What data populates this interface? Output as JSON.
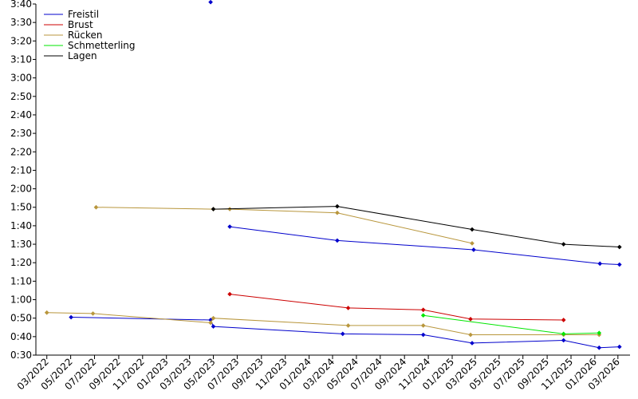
{
  "chart_data": {
    "type": "line",
    "title": "",
    "xlabel": "",
    "ylabel": "",
    "ylim": [
      "0:30",
      "3:40"
    ],
    "xlim": [
      "2022-02-01",
      "2026-04-01"
    ],
    "grid": false,
    "legend_position": "top-left",
    "y_ticks": [
      "0:30",
      "0:40",
      "0:50",
      "1:00",
      "1:10",
      "1:20",
      "1:30",
      "1:40",
      "1:50",
      "2:00",
      "2:10",
      "2:20",
      "2:30",
      "2:40",
      "2:50",
      "3:00",
      "3:10",
      "3:20",
      "3:30",
      "3:40"
    ],
    "x_ticks": [
      {
        "date": "2022-03-01",
        "label": "03/2022"
      },
      {
        "date": "2022-05-01",
        "label": "05/2022"
      },
      {
        "date": "2022-07-01",
        "label": "07/2022"
      },
      {
        "date": "2022-09-01",
        "label": "09/2022"
      },
      {
        "date": "2022-11-01",
        "label": "11/2022"
      },
      {
        "date": "2023-01-01",
        "label": "01/2023"
      },
      {
        "date": "2023-03-01",
        "label": "03/2023"
      },
      {
        "date": "2023-05-01",
        "label": "05/2023"
      },
      {
        "date": "2023-07-01",
        "label": "07/2023"
      },
      {
        "date": "2023-09-01",
        "label": "09/2023"
      },
      {
        "date": "2023-11-01",
        "label": "11/2023"
      },
      {
        "date": "2024-01-01",
        "label": "01/2024"
      },
      {
        "date": "2024-03-01",
        "label": "03/2024"
      },
      {
        "date": "2024-05-01",
        "label": "05/2024"
      },
      {
        "date": "2024-07-01",
        "label": "07/2024"
      },
      {
        "date": "2024-09-01",
        "label": "09/2024"
      },
      {
        "date": "2024-11-01",
        "label": "11/2024"
      },
      {
        "date": "2025-01-01",
        "label": "01/2025"
      },
      {
        "date": "2025-03-01",
        "label": "03/2025"
      },
      {
        "date": "2025-05-01",
        "label": "05/2025"
      },
      {
        "date": "2025-07-01",
        "label": "07/2025"
      },
      {
        "date": "2025-09-01",
        "label": "09/2025"
      },
      {
        "date": "2025-11-01",
        "label": "11/2025"
      },
      {
        "date": "2026-01-01",
        "label": "01/2026"
      },
      {
        "date": "2026-03-01",
        "label": "03/2026"
      }
    ],
    "series": [
      {
        "name": "Freistil",
        "color": "#0000cc",
        "points": [
          [
            "2022-05-02",
            "0:50.5"
          ],
          [
            "2023-04-24",
            "0:49"
          ],
          [
            "2023-05-01",
            "0:45.5"
          ],
          [
            "2024-03-27",
            "0:41.5"
          ],
          [
            "2024-10-19",
            "0:41"
          ],
          [
            "2025-02-21",
            "0:36.5"
          ],
          [
            "2025-10-13",
            "0:38"
          ],
          [
            "2026-01-12",
            "0:34"
          ],
          [
            "2026-03-05",
            "0:34.5"
          ]
        ],
        "unconnected_points": [
          [
            "2023-04-24",
            "3:41"
          ]
        ]
      },
      {
        "name": "Freistil",
        "color": "#0000cc",
        "points": [
          [
            "2023-06-12",
            "1:39.5"
          ],
          [
            "2024-03-13",
            "1:32"
          ],
          [
            "2025-02-25",
            "1:27"
          ],
          [
            "2026-01-14",
            "1:19.5"
          ],
          [
            "2026-03-05",
            "1:19"
          ]
        ]
      },
      {
        "name": "Brust",
        "color": "#cc0000",
        "points": [
          [
            "2023-06-12",
            "1:03"
          ],
          [
            "2024-04-10",
            "0:55.5"
          ],
          [
            "2024-10-19",
            "0:54.5"
          ],
          [
            "2025-02-17",
            "0:49.5"
          ],
          [
            "2025-10-13",
            "0:49"
          ]
        ]
      },
      {
        "name": "Rücken",
        "color": "#b8963c",
        "points": [
          [
            "2022-03-01",
            "0:53"
          ],
          [
            "2022-06-27",
            "0:52.5"
          ],
          [
            "2023-04-24",
            "0:47.5"
          ],
          [
            "2023-05-01",
            "0:50"
          ],
          [
            "2024-04-10",
            "0:46"
          ],
          [
            "2024-10-19",
            "0:46"
          ],
          [
            "2025-02-17",
            "0:41"
          ],
          [
            "2025-10-13",
            "0:41"
          ],
          [
            "2026-01-12",
            "0:41"
          ]
        ]
      },
      {
        "name": "Rücken",
        "color": "#b8963c",
        "points": [
          [
            "2022-07-05",
            "1:50"
          ],
          [
            "2023-05-01",
            "1:49"
          ],
          [
            "2023-06-12",
            "1:49"
          ],
          [
            "2024-03-13",
            "1:47"
          ],
          [
            "2025-02-21",
            "1:30.5"
          ]
        ]
      },
      {
        "name": "Schmetterling",
        "color": "#00e600",
        "points": [
          [
            "2024-10-19",
            "0:51.5"
          ],
          [
            "2025-10-13",
            "0:41.5"
          ],
          [
            "2026-01-12",
            "0:42"
          ]
        ]
      },
      {
        "name": "Lagen",
        "color": "#000000",
        "points": [
          [
            "2023-05-01",
            "1:49"
          ],
          [
            "2024-03-13",
            "1:50.5"
          ],
          [
            "2025-02-21",
            "1:38"
          ],
          [
            "2025-10-13",
            "1:30"
          ],
          [
            "2026-03-05",
            "1:28.5"
          ]
        ]
      }
    ],
    "legend": [
      {
        "name": "Freistil",
        "color": "#0000cc"
      },
      {
        "name": "Brust",
        "color": "#cc0000"
      },
      {
        "name": "Rücken",
        "color": "#b8963c"
      },
      {
        "name": "Schmetterling",
        "color": "#00e600"
      },
      {
        "name": "Lagen",
        "color": "#000000"
      }
    ]
  }
}
